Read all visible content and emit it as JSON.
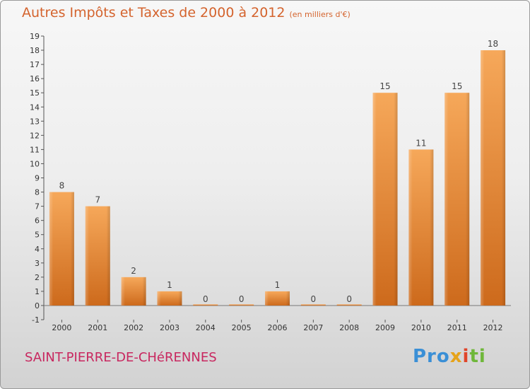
{
  "title": "Autres Impôts et Taxes de 2000 à 2012",
  "subtitle": "(en milliers d'€)",
  "commune": "SAINT-PIERRE-DE-CHéRENNES",
  "logo": [
    "Pro",
    "x",
    "i",
    "ti"
  ],
  "colors": {
    "bar_top": "#f6a85a",
    "bar_bottom": "#cd6a1c",
    "title": "#d4632d",
    "commune": "#c8275f"
  },
  "chart_data": {
    "type": "bar",
    "categories": [
      "2000",
      "2001",
      "2002",
      "2003",
      "2004",
      "2005",
      "2006",
      "2007",
      "2008",
      "2009",
      "2010",
      "2011",
      "2012"
    ],
    "values": [
      8,
      7,
      2,
      1,
      0,
      0,
      1,
      0,
      0,
      15,
      11,
      15,
      18
    ],
    "value_labels": [
      "8",
      "7",
      "2",
      "1",
      "0",
      "0",
      "1",
      "0",
      "0",
      "15",
      "11",
      "15",
      "18"
    ],
    "y_ticks": [
      "-1",
      "0",
      "1",
      "2",
      "3",
      "4",
      "5",
      "6",
      "7",
      "8",
      "9",
      "10",
      "11",
      "12",
      "13",
      "14",
      "15",
      "16",
      "17",
      "18",
      "19"
    ],
    "ylim": [
      -1,
      19
    ],
    "grid": false
  }
}
